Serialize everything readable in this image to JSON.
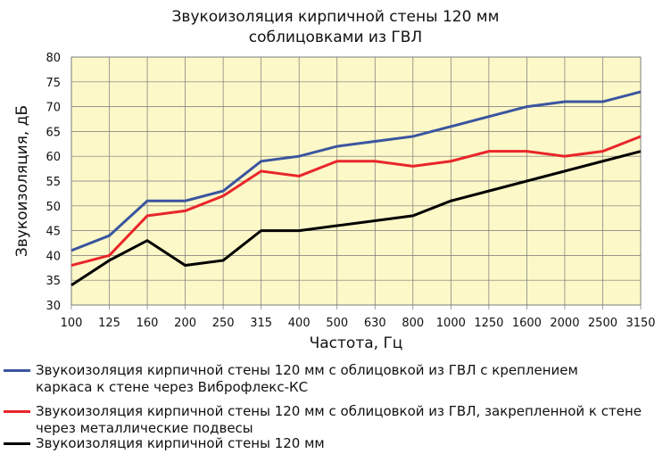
{
  "chart_data": {
    "type": "line",
    "title": "Звукоизоляция кирпичной стены 120 мм соблицовками из ГВЛ",
    "title_lines": [
      "Звукоизоляция кирпичной стены 120 мм",
      "соблицовками из ГВЛ"
    ],
    "xlabel": "Частота, Гц",
    "ylabel": "Звукоизоляция, дБ",
    "ylim": [
      30,
      80
    ],
    "yticks": [
      30,
      35,
      40,
      45,
      50,
      55,
      60,
      65,
      70,
      75,
      80
    ],
    "grid": true,
    "background": "#fdf8c8",
    "legend_placement": "bottom",
    "categories": [
      "100",
      "125",
      "160",
      "200",
      "250",
      "315",
      "400",
      "500",
      "630",
      "800",
      "1000",
      "1250",
      "1600",
      "2000",
      "2500",
      "3150"
    ],
    "series": [
      {
        "name": "Звукоизоляция кирпичной стены 120 мм с облицовкой из ГВЛ  с креплением каркаса к стене через Виброфлекс-КС",
        "legend_lines": [
          "Звукоизоляция кирпичной стены 120 мм с облицовкой из ГВЛ  с креплением",
          "каркаса к стене через Виброфлекс-КС"
        ],
        "color": "#3a559f",
        "values": [
          41,
          44,
          51,
          51,
          53,
          59,
          60,
          62,
          63,
          64,
          66,
          68,
          70,
          71,
          71,
          73
        ]
      },
      {
        "name": "Звукоизоляция кирпичной стены 120 мм с облицовкой из ГВЛ, закрепленной к стене через металлические подвесы",
        "legend_lines": [
          "Звукоизоляция кирпичной стены 120 мм с облицовкой из ГВЛ, закрепленной к стене",
          "через металлические подвесы"
        ],
        "color": "#e8262a",
        "values": [
          38,
          40,
          48,
          49,
          52,
          57,
          56,
          59,
          59,
          58,
          59,
          61,
          61,
          60,
          61,
          64
        ]
      },
      {
        "name": "Звукоизоляция кирпичной стены 120 мм",
        "legend_lines": [
          "Звукоизоляция кирпичной стены 120 мм"
        ],
        "color": "#000000",
        "values": [
          34,
          39,
          43,
          38,
          39,
          45,
          45,
          46,
          47,
          48,
          51,
          53,
          55,
          57,
          59,
          61
        ]
      }
    ]
  }
}
